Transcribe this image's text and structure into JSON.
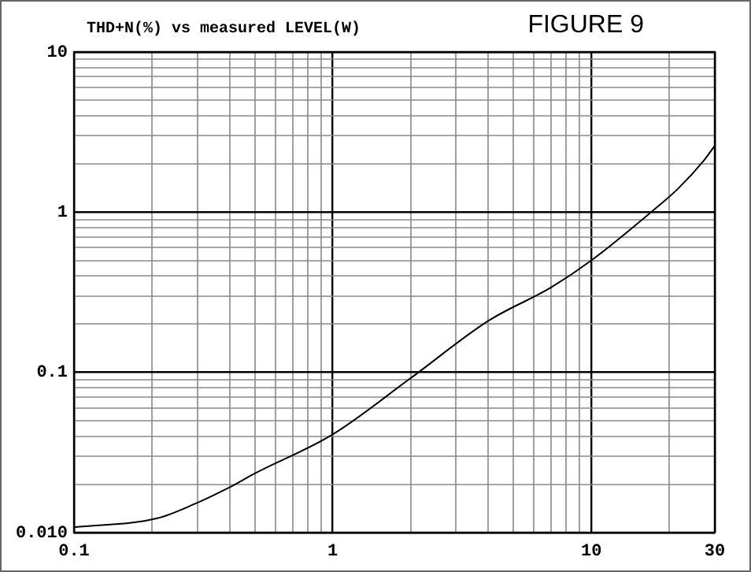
{
  "chart_data": {
    "type": "line",
    "title": "THD+N(%) vs measured LEVEL(W)",
    "annotations": [
      "FIGURE 9"
    ],
    "log": "xy",
    "grid": true,
    "legend": false,
    "marker": "none",
    "line_style": "solid",
    "xlim": [
      0.1,
      30
    ],
    "ylim": [
      0.01,
      10
    ],
    "xticks": [
      0.1,
      {
        "value": 0.2,
        "label": null
      },
      {
        "value": 0.3,
        "label": null
      },
      {
        "value": 0.4,
        "label": null
      },
      {
        "value": 0.5,
        "label": null
      },
      {
        "value": 0.6,
        "label": null
      },
      {
        "value": 0.7,
        "label": null
      },
      {
        "value": 0.8,
        "label": null
      },
      {
        "value": 0.9,
        "label": null
      },
      1,
      {
        "value": 2,
        "label": null
      },
      {
        "value": 3,
        "label": null
      },
      {
        "value": 4,
        "label": null
      },
      {
        "value": 5,
        "label": null
      },
      {
        "value": 6,
        "label": null
      },
      {
        "value": 7,
        "label": null
      },
      {
        "value": 8,
        "label": null
      },
      {
        "value": 9,
        "label": null
      },
      10,
      {
        "value": 20,
        "label": null
      },
      30
    ],
    "yticks": [
      {
        "value": 0.01,
        "label": "0.010"
      },
      {
        "value": 0.02,
        "label": null
      },
      {
        "value": 0.03,
        "label": null
      },
      {
        "value": 0.04,
        "label": null
      },
      {
        "value": 0.05,
        "label": null
      },
      {
        "value": 0.06,
        "label": null
      },
      {
        "value": 0.07,
        "label": null
      },
      {
        "value": 0.08,
        "label": null
      },
      {
        "value": 0.09,
        "label": null
      },
      0.1,
      {
        "value": 0.2,
        "label": null
      },
      {
        "value": 0.3,
        "label": null
      },
      {
        "value": 0.4,
        "label": null
      },
      {
        "value": 0.5,
        "label": null
      },
      {
        "value": 0.6,
        "label": null
      },
      {
        "value": 0.7,
        "label": null
      },
      {
        "value": 0.8,
        "label": null
      },
      {
        "value": 0.9,
        "label": null
      },
      1,
      {
        "value": 2,
        "label": null
      },
      {
        "value": 3,
        "label": null
      },
      {
        "value": 4,
        "label": null
      },
      {
        "value": 5,
        "label": null
      },
      {
        "value": 6,
        "label": null
      },
      {
        "value": 7,
        "label": null
      },
      {
        "value": 8,
        "label": null
      },
      {
        "value": 9,
        "label": null
      },
      10
    ],
    "x": [
      0.1,
      0.21,
      0.29,
      0.4,
      0.5,
      1,
      2,
      4,
      7,
      10,
      17,
      21.6,
      27.2,
      30
    ],
    "series": [
      {
        "color": "#000000",
        "values": [
          0.0108,
          0.0123,
          0.015,
          0.0192,
          0.0234,
          0.041,
          0.092,
          0.21,
          0.34,
          0.5,
          1.0,
          1.4,
          2.1,
          2.6
        ]
      }
    ]
  }
}
